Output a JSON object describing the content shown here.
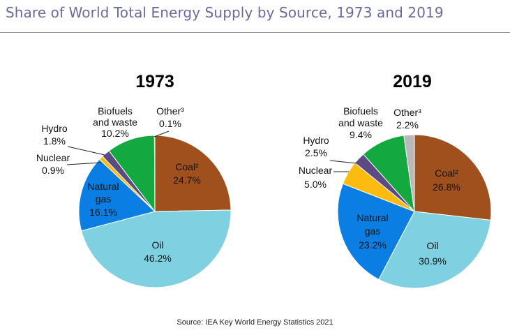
{
  "title": "Share of World Total Energy Supply by Source, 1973 and 2019",
  "source": "Source: IEA Key World Energy Statistics 2021",
  "colors": {
    "coal": "#a0501c",
    "oil": "#7fd0e0",
    "natural_gas": "#0a7ee3",
    "nuclear": "#fdbb10",
    "hydro": "#5c4a82",
    "biofuels": "#14a840",
    "other": "#b9b9b9"
  },
  "chart_data": [
    {
      "type": "pie",
      "title": "1973",
      "slices": [
        {
          "key": "coal",
          "label": "Coal²",
          "label_lines": [
            "Coal²"
          ],
          "value": 24.7,
          "value_text": "24.7%"
        },
        {
          "key": "oil",
          "label": "Oil",
          "label_lines": [
            "Oil"
          ],
          "value": 46.2,
          "value_text": "46.2%"
        },
        {
          "key": "natural_gas",
          "label": "Natural gas",
          "label_lines": [
            "Natural",
            "gas"
          ],
          "value": 16.1,
          "value_text": "16.1%"
        },
        {
          "key": "nuclear",
          "label": "Nuclear",
          "label_lines": [
            "Nuclear"
          ],
          "value": 0.9,
          "value_text": "0.9%"
        },
        {
          "key": "hydro",
          "label": "Hydro",
          "label_lines": [
            "Hydro"
          ],
          "value": 1.8,
          "value_text": "1.8%"
        },
        {
          "key": "biofuels",
          "label": "Biofuels and waste",
          "label_lines": [
            "Biofuels",
            "and waste"
          ],
          "value": 10.2,
          "value_text": "10.2%"
        },
        {
          "key": "other",
          "label": "Other³",
          "label_lines": [
            "Other³"
          ],
          "value": 0.1,
          "value_text": "0.1%"
        }
      ]
    },
    {
      "type": "pie",
      "title": "2019",
      "slices": [
        {
          "key": "coal",
          "label": "Coal²",
          "label_lines": [
            "Coal²"
          ],
          "value": 26.8,
          "value_text": "26.8%"
        },
        {
          "key": "oil",
          "label": "Oil",
          "label_lines": [
            "Oil"
          ],
          "value": 30.9,
          "value_text": "30.9%"
        },
        {
          "key": "natural_gas",
          "label": "Natural gas",
          "label_lines": [
            "Natural",
            "gas"
          ],
          "value": 23.2,
          "value_text": "23.2%"
        },
        {
          "key": "nuclear",
          "label": "Nuclear",
          "label_lines": [
            "Nuclear"
          ],
          "value": 5.0,
          "value_text": "5.0%"
        },
        {
          "key": "hydro",
          "label": "Hydro",
          "label_lines": [
            "Hydro"
          ],
          "value": 2.5,
          "value_text": "2.5%"
        },
        {
          "key": "biofuels",
          "label": "Biofuels and waste",
          "label_lines": [
            "Biofuels",
            "and waste"
          ],
          "value": 9.4,
          "value_text": "9.4%"
        },
        {
          "key": "other",
          "label": "Other³",
          "label_lines": [
            "Other³"
          ],
          "value": 2.2,
          "value_text": "2.2%"
        }
      ]
    }
  ]
}
